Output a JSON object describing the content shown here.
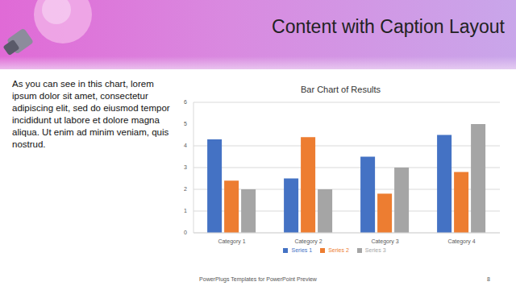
{
  "slide": {
    "title": "Content with Caption Layout",
    "caption": "As you can see in this chart, lorem ipsum dolor sit amet, consectetur adipiscing elit, sed do eiusmod tempor incididunt ut labore et dolore magna aliqua. Ut enim ad minim veniam, quis nostrud.",
    "footer": "PowerPlugs Templates for PowerPoint Preview",
    "page_number": "8"
  },
  "chart_data": {
    "type": "bar",
    "title": "Bar Chart of Results",
    "categories": [
      "Category 1",
      "Category 2",
      "Category 3",
      "Category 4"
    ],
    "series": [
      {
        "name": "Series 1",
        "color": "#4472c4",
        "values": [
          4.3,
          2.5,
          3.5,
          4.5
        ]
      },
      {
        "name": "Series 2",
        "color": "#ed7d31",
        "values": [
          2.4,
          4.4,
          1.8,
          2.8
        ]
      },
      {
        "name": "Series 3",
        "color": "#a5a5a5",
        "values": [
          2,
          2,
          3,
          5
        ]
      }
    ],
    "ylim": [
      0,
      6
    ],
    "yticks": [
      0,
      1,
      2,
      3,
      4,
      5,
      6
    ],
    "grid": true,
    "legend": "bottom"
  }
}
